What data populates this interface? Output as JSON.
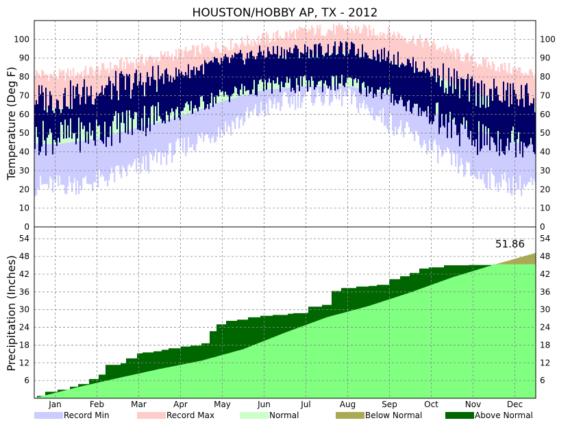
{
  "chart_data": [
    {
      "type": "bar",
      "title": "HOUSTON/HOBBY AP, TX - 2012",
      "ylabel": "Temperature (Deg F)",
      "ylim": [
        0,
        110
      ],
      "yticks": [
        0,
        10,
        20,
        30,
        40,
        50,
        60,
        70,
        80,
        90,
        100
      ],
      "months": [
        "Jan",
        "Feb",
        "Mar",
        "Apr",
        "May",
        "Jun",
        "Jul",
        "Aug",
        "Sep",
        "Oct",
        "Nov",
        "Dec"
      ],
      "grid": true,
      "series_monthly": {
        "record_min": [
          22,
          24,
          32,
          42,
          52,
          63,
          70,
          69,
          56,
          42,
          28,
          22
        ],
        "record_max": [
          80,
          83,
          88,
          92,
          96,
          100,
          104,
          105,
          103,
          97,
          88,
          83
        ],
        "normal_low": [
          44,
          47,
          53,
          59,
          67,
          73,
          75,
          75,
          71,
          61,
          52,
          45
        ],
        "normal_high": [
          63,
          66,
          72,
          78,
          85,
          90,
          92,
          93,
          88,
          81,
          72,
          64
        ],
        "actual_low": [
          48,
          50,
          57,
          61,
          70,
          75,
          76,
          77,
          70,
          59,
          47,
          46
        ],
        "actual_high": [
          68,
          73,
          77,
          82,
          88,
          93,
          94,
          95,
          91,
          83,
          72,
          70
        ]
      }
    },
    {
      "type": "area",
      "ylabel": "Precipitation (Inches)",
      "ylim": [
        0,
        58
      ],
      "yticks": [
        6,
        12,
        18,
        24,
        30,
        36,
        42,
        48,
        54
      ],
      "months": [
        "Jan",
        "Feb",
        "Mar",
        "Apr",
        "May",
        "Jun",
        "Jul",
        "Aug",
        "Sep",
        "Oct",
        "Nov",
        "Dec"
      ],
      "grid": true,
      "annotation": "51.86",
      "normal_cumulative_month_start": [
        0,
        3.6,
        6.8,
        9.9,
        12.7,
        16.6,
        22.2,
        27.4,
        31.2,
        35.8,
        40.9,
        45.2,
        49.2,
        51.86
      ],
      "actual_cumulative_points": [
        [
          0,
          0
        ],
        [
          0.05,
          0.8
        ],
        [
          0.25,
          2.2
        ],
        [
          0.55,
          2.9
        ],
        [
          0.85,
          3.9
        ],
        [
          1.05,
          4.8
        ],
        [
          1.3,
          6.5
        ],
        [
          1.55,
          8.0
        ],
        [
          1.7,
          11.3
        ],
        [
          2.05,
          11.8
        ],
        [
          2.2,
          13.5
        ],
        [
          2.45,
          15.2
        ],
        [
          2.6,
          15.5
        ],
        [
          2.85,
          15.9
        ],
        [
          3.05,
          16.4
        ],
        [
          3.2,
          16.9
        ],
        [
          3.5,
          17.5
        ],
        [
          3.75,
          17.8
        ],
        [
          4.0,
          18.6
        ],
        [
          4.2,
          22.7
        ],
        [
          4.35,
          25.0
        ],
        [
          4.6,
          26.2
        ],
        [
          4.85,
          26.6
        ],
        [
          5.1,
          27.4
        ],
        [
          5.4,
          27.9
        ],
        [
          5.7,
          28.2
        ],
        [
          6.05,
          28.6
        ],
        [
          6.2,
          28.8
        ],
        [
          6.5,
          28.9
        ],
        [
          6.55,
          31.0
        ],
        [
          6.9,
          31.6
        ],
        [
          7.1,
          36.3
        ],
        [
          7.35,
          37.3
        ],
        [
          7.7,
          37.8
        ],
        [
          8.0,
          38.0
        ],
        [
          8.2,
          38.4
        ],
        [
          8.5,
          40.3
        ],
        [
          8.75,
          41.3
        ],
        [
          9.0,
          42.4
        ],
        [
          9.2,
          43.9
        ],
        [
          9.45,
          44.3
        ],
        [
          9.8,
          45.0
        ],
        [
          10.1,
          45.0
        ],
        [
          10.4,
          45.1
        ],
        [
          11.0,
          45.3
        ],
        [
          12,
          45.3
        ]
      ],
      "legend": [
        {
          "label": "Record Min",
          "color": "#ccccff"
        },
        {
          "label": "Record Max",
          "color": "#ffcccc"
        },
        {
          "label": "Normal",
          "color": "#ccffcc"
        },
        {
          "label": "Below Normal",
          "color": "#aaaa55"
        },
        {
          "label": "Above Normal",
          "color": "#006600"
        }
      ],
      "legend_placement": "bottom"
    }
  ],
  "colors": {
    "record_min": "#ccccff",
    "record_max": "#ffcccc",
    "normal": "#ccffcc",
    "actual": "#000066",
    "precip_normal": "#80ff80",
    "above_normal": "#006600",
    "below_normal": "#aaaa55"
  }
}
